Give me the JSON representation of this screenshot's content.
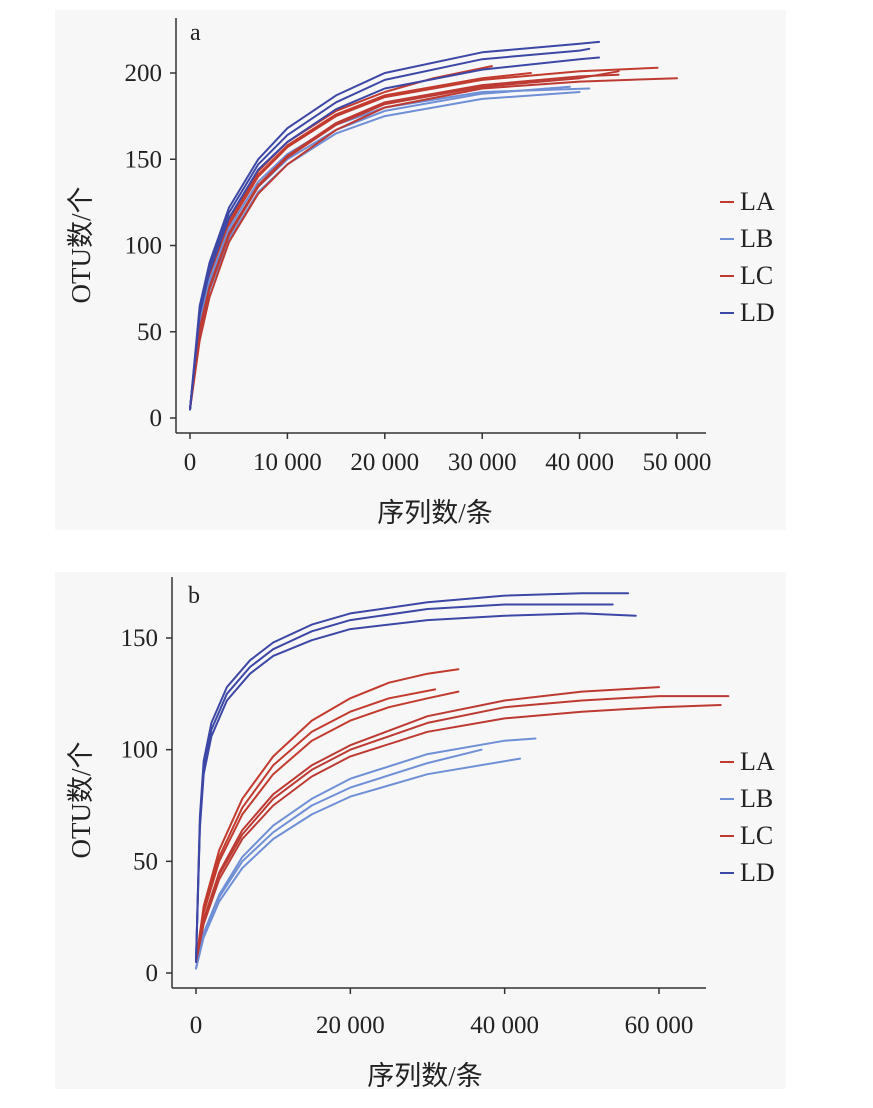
{
  "colors": {
    "LA": "#c23b2e",
    "LB": "#6f8fd6",
    "LC": "#bd3a33",
    "LD": "#3c47a6",
    "panel_background": "#f7f7f7",
    "axis": "#333333"
  },
  "chart_data": [
    {
      "type": "line",
      "panel_label": "a",
      "xlabel": "序列数/条",
      "ylabel": "OTU数/个",
      "xlim": [
        -2000,
        52000
      ],
      "ylim": [
        -10,
        225
      ],
      "xticks": [
        0,
        10000,
        20000,
        30000,
        40000,
        50000
      ],
      "xtick_labels": [
        "0",
        "10 000",
        "20 000",
        "30 000",
        "40 000",
        "50 000"
      ],
      "yticks": [
        0,
        50,
        100,
        150,
        200
      ],
      "ytick_labels": [
        "0",
        "50",
        "100",
        "150",
        "200"
      ],
      "grid": false,
      "legend": {
        "position": "right",
        "entries": [
          "LA",
          "LB",
          "LC",
          "LD"
        ]
      },
      "series": [
        {
          "name": "LA",
          "color_key": "LA",
          "x": [
            0,
            1000,
            2000,
            4000,
            7000,
            10000,
            15000,
            20000,
            25000,
            31000
          ],
          "y": [
            5,
            60,
            85,
            115,
            143,
            160,
            178,
            189,
            197,
            204
          ]
        },
        {
          "name": "LA",
          "color_key": "LA",
          "x": [
            0,
            1000,
            2000,
            4000,
            7000,
            10000,
            15000,
            20000,
            30000,
            40000,
            48000
          ],
          "y": [
            5,
            55,
            80,
            112,
            140,
            157,
            175,
            186,
            196,
            201,
            203
          ]
        },
        {
          "name": "LA",
          "color_key": "LA",
          "x": [
            0,
            1000,
            2000,
            4000,
            7000,
            10000,
            15000,
            20000,
            30000,
            35000
          ],
          "y": [
            5,
            58,
            82,
            113,
            141,
            158,
            176,
            187,
            197,
            200
          ]
        },
        {
          "name": "LB",
          "color_key": "LB",
          "x": [
            0,
            1000,
            2000,
            4000,
            7000,
            10000,
            15000,
            20000,
            30000,
            39000
          ],
          "y": [
            5,
            55,
            78,
            108,
            134,
            150,
            167,
            178,
            188,
            192
          ]
        },
        {
          "name": "LB",
          "color_key": "LB",
          "x": [
            0,
            1000,
            2000,
            4000,
            7000,
            10000,
            15000,
            20000,
            30000,
            40000
          ],
          "y": [
            5,
            50,
            74,
            104,
            131,
            147,
            165,
            175,
            185,
            189
          ]
        },
        {
          "name": "LB",
          "color_key": "LB",
          "x": [
            0,
            1000,
            2000,
            4000,
            7000,
            10000,
            15000,
            20000,
            30000,
            41000
          ],
          "y": [
            5,
            56,
            80,
            110,
            137,
            153,
            170,
            180,
            189,
            191
          ]
        },
        {
          "name": "LC",
          "color_key": "LC",
          "x": [
            0,
            1000,
            2000,
            4000,
            7000,
            10000,
            15000,
            20000,
            30000,
            40000,
            50000
          ],
          "y": [
            5,
            45,
            70,
            102,
            130,
            147,
            167,
            180,
            191,
            195,
            197
          ]
        },
        {
          "name": "LC",
          "color_key": "LC",
          "x": [
            0,
            1000,
            2000,
            4000,
            7000,
            10000,
            15000,
            20000,
            30000,
            40000,
            44000
          ],
          "y": [
            5,
            52,
            76,
            107,
            135,
            152,
            171,
            183,
            193,
            198,
            199
          ]
        },
        {
          "name": "LC",
          "color_key": "LC",
          "x": [
            0,
            1000,
            2000,
            4000,
            7000,
            10000,
            15000,
            20000,
            30000,
            40000,
            44000
          ],
          "y": [
            5,
            50,
            75,
            106,
            134,
            151,
            170,
            182,
            192,
            197,
            201
          ]
        },
        {
          "name": "LD",
          "color_key": "LD",
          "x": [
            0,
            1000,
            2000,
            4000,
            7000,
            10000,
            15000,
            20000,
            30000,
            40000,
            42000
          ],
          "y": [
            5,
            65,
            90,
            122,
            150,
            168,
            187,
            200,
            212,
            217,
            218
          ]
        },
        {
          "name": "LD",
          "color_key": "LD",
          "x": [
            0,
            1000,
            2000,
            4000,
            7000,
            10000,
            15000,
            20000,
            30000,
            40000,
            41000
          ],
          "y": [
            5,
            62,
            88,
            119,
            147,
            164,
            183,
            196,
            208,
            213,
            214
          ]
        },
        {
          "name": "LD",
          "color_key": "LD",
          "x": [
            0,
            1000,
            2000,
            4000,
            7000,
            10000,
            15000,
            20000,
            30000,
            40000,
            42000
          ],
          "y": [
            5,
            60,
            85,
            116,
            144,
            160,
            179,
            191,
            202,
            208,
            209
          ]
        }
      ]
    },
    {
      "type": "line",
      "panel_label": "b",
      "xlabel": "序列数/条",
      "ylabel": "OTU数/个",
      "xlim": [
        -3000,
        66000
      ],
      "ylim": [
        -8,
        176
      ],
      "xticks": [
        0,
        20000,
        40000,
        60000
      ],
      "xtick_labels": [
        "0",
        "20 000",
        "40 000",
        "60 000"
      ],
      "yticks": [
        0,
        50,
        100,
        150
      ],
      "ytick_labels": [
        "0",
        "50",
        "100",
        "150"
      ],
      "grid": false,
      "legend": {
        "position": "right",
        "entries": [
          "LA",
          "LB",
          "LC",
          "LD"
        ]
      },
      "series": [
        {
          "name": "LA",
          "color_key": "LA",
          "x": [
            0,
            1000,
            3000,
            6000,
            10000,
            15000,
            20000,
            25000,
            30000,
            34000
          ],
          "y": [
            5,
            30,
            55,
            78,
            97,
            113,
            123,
            130,
            134,
            136
          ]
        },
        {
          "name": "LA",
          "color_key": "LA",
          "x": [
            0,
            1000,
            3000,
            6000,
            10000,
            15000,
            20000,
            25000,
            31000
          ],
          "y": [
            5,
            28,
            52,
            74,
            93,
            108,
            117,
            123,
            127
          ]
        },
        {
          "name": "LA",
          "color_key": "LA",
          "x": [
            0,
            1000,
            3000,
            6000,
            10000,
            15000,
            20000,
            25000,
            30000,
            34000
          ],
          "y": [
            5,
            27,
            50,
            71,
            89,
            104,
            113,
            119,
            123,
            126
          ]
        },
        {
          "name": "LB",
          "color_key": "LB",
          "x": [
            0,
            1000,
            3000,
            6000,
            10000,
            15000,
            20000,
            30000,
            40000,
            44000
          ],
          "y": [
            2,
            18,
            35,
            52,
            66,
            78,
            87,
            98,
            104,
            105
          ]
        },
        {
          "name": "LB",
          "color_key": "LB",
          "x": [
            0,
            1000,
            3000,
            6000,
            10000,
            15000,
            20000,
            30000,
            37000
          ],
          "y": [
            2,
            17,
            34,
            50,
            63,
            75,
            83,
            94,
            100
          ]
        },
        {
          "name": "LB",
          "color_key": "LB",
          "x": [
            0,
            1000,
            3000,
            6000,
            10000,
            15000,
            20000,
            30000,
            42000
          ],
          "y": [
            2,
            16,
            32,
            47,
            60,
            71,
            79,
            89,
            96
          ]
        },
        {
          "name": "LC",
          "color_key": "LC",
          "x": [
            0,
            1000,
            3000,
            6000,
            10000,
            15000,
            20000,
            30000,
            40000,
            50000,
            60000,
            68000
          ],
          "y": [
            5,
            22,
            42,
            60,
            75,
            88,
            97,
            108,
            114,
            117,
            119,
            120
          ]
        },
        {
          "name": "LC",
          "color_key": "LC",
          "x": [
            0,
            1000,
            3000,
            6000,
            10000,
            15000,
            20000,
            30000,
            40000,
            50000,
            60000
          ],
          "y": [
            5,
            24,
            45,
            64,
            80,
            93,
            102,
            115,
            122,
            126,
            128
          ]
        },
        {
          "name": "LC",
          "color_key": "LC",
          "x": [
            0,
            1000,
            3000,
            6000,
            10000,
            15000,
            20000,
            30000,
            40000,
            50000,
            60000,
            69000
          ],
          "y": [
            5,
            23,
            44,
            62,
            78,
            91,
            100,
            112,
            119,
            122,
            124,
            124
          ]
        },
        {
          "name": "LD",
          "color_key": "LD",
          "x": [
            0,
            500,
            1000,
            2000,
            4000,
            7000,
            10000,
            15000,
            20000,
            30000,
            40000,
            50000,
            56000
          ],
          "y": [
            5,
            70,
            95,
            112,
            128,
            140,
            148,
            156,
            161,
            166,
            169,
            170,
            170
          ]
        },
        {
          "name": "LD",
          "color_key": "LD",
          "x": [
            0,
            500,
            1000,
            2000,
            4000,
            7000,
            10000,
            15000,
            20000,
            30000,
            40000,
            50000,
            54000
          ],
          "y": [
            5,
            67,
            92,
            109,
            125,
            137,
            145,
            153,
            158,
            163,
            165,
            165,
            165
          ]
        },
        {
          "name": "LD",
          "color_key": "LD",
          "x": [
            0,
            500,
            1000,
            2000,
            4000,
            7000,
            10000,
            15000,
            20000,
            30000,
            40000,
            50000,
            57000
          ],
          "y": [
            5,
            65,
            89,
            106,
            122,
            134,
            142,
            149,
            154,
            158,
            160,
            161,
            160
          ]
        }
      ]
    }
  ]
}
